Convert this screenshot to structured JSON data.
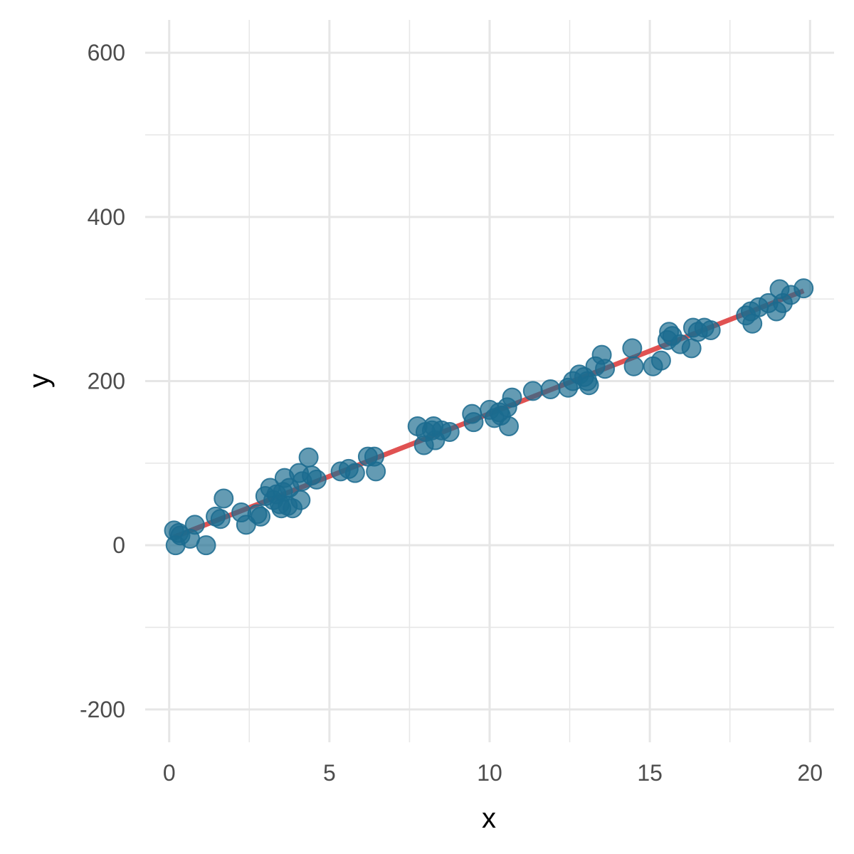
{
  "chart_data": {
    "type": "scatter",
    "title": "",
    "xlabel": "x",
    "ylabel": "y",
    "xlim": [
      -0.75,
      20.75
    ],
    "ylim": [
      -240,
      640
    ],
    "x_ticks": [
      0,
      5,
      10,
      15,
      20
    ],
    "x_tick_labels": [
      "0",
      "5",
      "10",
      "15",
      "20"
    ],
    "x_minor_ticks": [
      2.5,
      7.5,
      12.5,
      17.5
    ],
    "y_ticks": [
      -200,
      0,
      200,
      400,
      600
    ],
    "y_tick_labels": [
      "-200",
      "0",
      "200",
      "400",
      "600"
    ],
    "y_minor_ticks": [
      -100,
      100,
      300,
      500
    ],
    "grid": true,
    "colors": {
      "points": "#1b6b8f",
      "fit_line": "#e05252",
      "grid": "#e6e6e6",
      "tick_text": "#4d4d4d"
    },
    "series": [
      {
        "type": "scatter",
        "x": [
          0.15,
          0.2,
          0.3,
          0.35,
          0.65,
          0.8,
          1.15,
          1.45,
          1.6,
          1.7,
          2.25,
          2.4,
          2.75,
          2.85,
          3.0,
          3.15,
          3.25,
          3.35,
          3.45,
          3.5,
          3.55,
          3.6,
          3.7,
          3.75,
          3.85,
          4.05,
          4.1,
          4.15,
          4.35,
          4.45,
          4.6,
          5.35,
          5.6,
          5.8,
          6.2,
          6.4,
          6.45,
          7.75,
          7.95,
          8.0,
          8.2,
          8.25,
          8.3,
          8.5,
          8.75,
          9.45,
          9.5,
          10.0,
          10.15,
          10.3,
          10.35,
          10.55,
          10.6,
          10.7,
          11.35,
          11.9,
          12.45,
          12.6,
          12.8,
          12.95,
          13.05,
          13.1,
          13.3,
          13.5,
          13.6,
          14.45,
          14.5,
          15.1,
          15.35,
          15.55,
          15.6,
          15.7,
          15.95,
          16.3,
          16.35,
          16.5,
          16.7,
          16.9,
          18.0,
          18.15,
          18.2,
          18.4,
          18.7,
          18.95,
          19.05,
          19.15,
          19.4,
          19.8
        ],
        "y": [
          18,
          0,
          15,
          12,
          8,
          25,
          0,
          35,
          32,
          57,
          40,
          25,
          38,
          35,
          60,
          70,
          55,
          62,
          50,
          45,
          65,
          82,
          48,
          70,
          45,
          88,
          55,
          78,
          107,
          85,
          80,
          90,
          93,
          88,
          108,
          108,
          90,
          145,
          122,
          138,
          140,
          145,
          128,
          140,
          138,
          160,
          150,
          165,
          155,
          162,
          158,
          168,
          145,
          180,
          188,
          190,
          192,
          200,
          208,
          205,
          200,
          195,
          218,
          232,
          215,
          240,
          218,
          218,
          225,
          250,
          260,
          255,
          245,
          240,
          265,
          260,
          265,
          262,
          280,
          285,
          270,
          290,
          295,
          285,
          312,
          295,
          305,
          313
        ]
      },
      {
        "type": "line",
        "x": [
          0.15,
          19.8
        ],
        "y": [
          10,
          310
        ]
      }
    ]
  }
}
